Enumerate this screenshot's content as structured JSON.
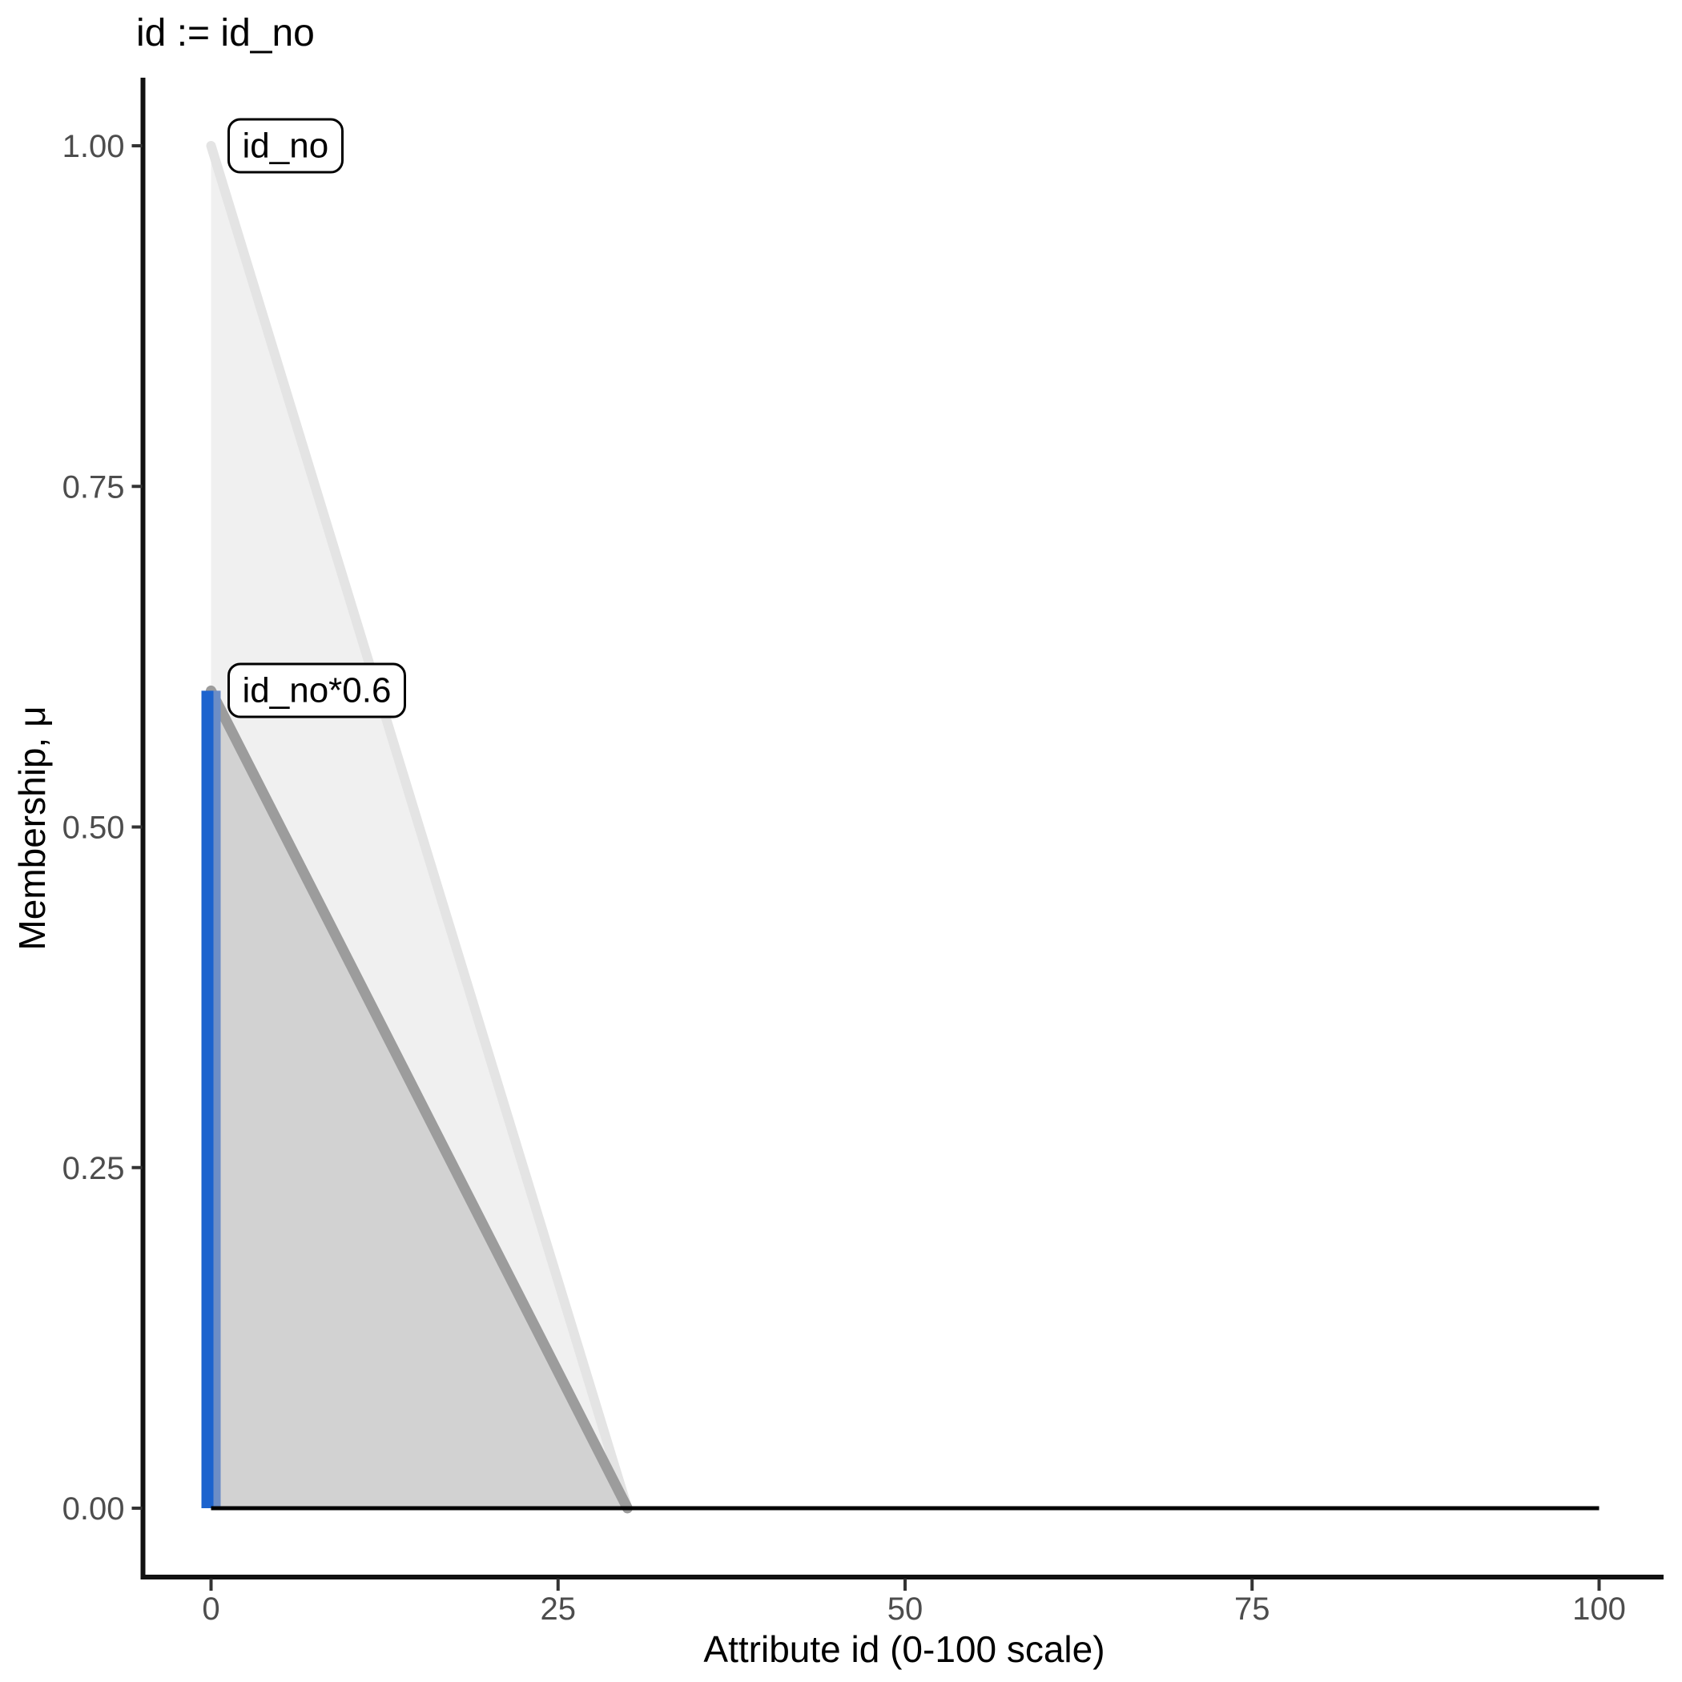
{
  "title": "id := id_no",
  "colors": {
    "background": "#FFFFFF",
    "axis_line": "#111111",
    "tick_mark": "#333333",
    "tick_label": "#4D4D4D",
    "title_text": "#000000",
    "annotation_border": "#000000",
    "annotation_background": "#FFFFFF"
  },
  "chart_data": {
    "type": "area",
    "title": "id := id_no",
    "xlabel": "Attribute id (0-100 scale)",
    "ylabel": "Membership, μ",
    "xlim": [
      0,
      100
    ],
    "ylim": [
      0,
      1
    ],
    "grid": false,
    "legend": "none",
    "x_ticks": [
      {
        "v": 0,
        "label": "0"
      },
      {
        "v": 25,
        "label": "25"
      },
      {
        "v": 50,
        "label": "50"
      },
      {
        "v": 75,
        "label": "75"
      },
      {
        "v": 100,
        "label": "100"
      }
    ],
    "y_ticks": [
      {
        "v": 0,
        "label": "0.00"
      },
      {
        "v": 0.25,
        "label": "0.25"
      },
      {
        "v": 0.5,
        "label": "0.50"
      },
      {
        "v": 0.75,
        "label": "0.75"
      },
      {
        "v": 1,
        "label": "1.00"
      }
    ],
    "series": [
      {
        "name": "id_no",
        "label": "id_no",
        "label_anchor": {
          "x": 0,
          "y": 1.0
        },
        "points": [
          [
            0,
            1.0
          ],
          [
            30,
            0
          ],
          [
            0,
            0
          ]
        ],
        "fill": "#F0F0F0",
        "edge_color": "#E4E4E4",
        "edge_width": 12,
        "edge_from": [
          0,
          1.0
        ],
        "edge_to": [
          30,
          0
        ]
      },
      {
        "name": "id_no*0.6",
        "label": "id_no*0.6",
        "label_anchor": {
          "x": 0,
          "y": 0.6
        },
        "points": [
          [
            0,
            0.6
          ],
          [
            30,
            0
          ],
          [
            0,
            0
          ]
        ],
        "fill": "#D2D2D2",
        "edge_color": "#9C9C9C",
        "edge_width": 13,
        "edge_from": [
          0,
          0.6
        ],
        "edge_to": [
          30,
          0
        ]
      }
    ],
    "baseline": {
      "x1": 0,
      "y1": 0,
      "x2": 100,
      "y2": 0,
      "color": "#000000",
      "width": 5
    },
    "marker": {
      "x": 0,
      "y_from": 0,
      "y_to": 0.6,
      "color_main": "#1C63CE",
      "width_main": 15,
      "color_side": "#6C8DC6",
      "width_side": 9
    }
  }
}
